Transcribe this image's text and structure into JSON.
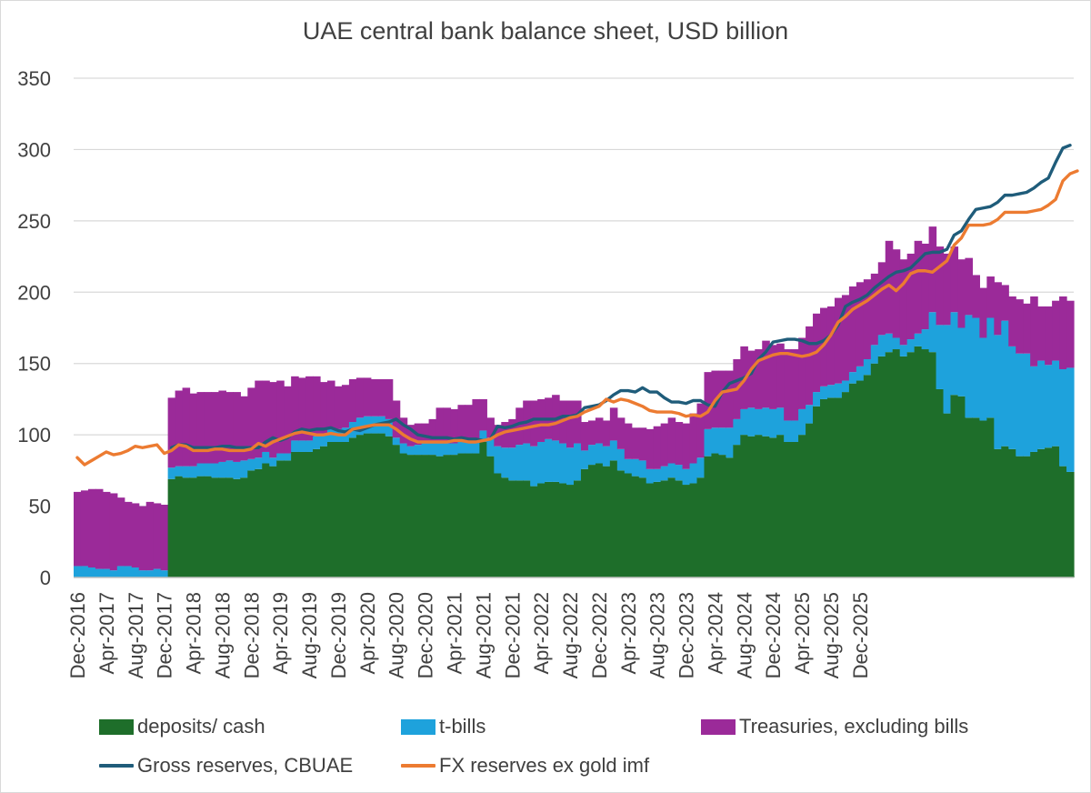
{
  "chart_data": {
    "type": "bar",
    "title": "UAE central bank balance sheet, USD billion",
    "stacked": true,
    "ylim": [
      0,
      350
    ],
    "yticks": [
      0,
      50,
      100,
      150,
      200,
      250,
      300,
      350
    ],
    "grid": true,
    "legend_position": "bottom",
    "x_tick_labels": [
      "Dec-2016",
      "Apr-2017",
      "Aug-2017",
      "Dec-2017",
      "Apr-2018",
      "Aug-2018",
      "Dec-2018",
      "Apr-2019",
      "Aug-2019",
      "Dec-2019",
      "Apr-2020",
      "Aug-2020",
      "Dec-2020",
      "Apr-2021",
      "Aug-2021",
      "Dec-2021",
      "Apr-2022",
      "Aug-2022",
      "Dec-2022",
      "Apr-2023",
      "Aug-2023",
      "Dec-2023",
      "Apr-2024",
      "Aug-2024",
      "Dec-2024",
      "Apr-2025",
      "Aug-2025",
      "Dec-2025"
    ],
    "x_start": "Dec-2016",
    "x_end": "Apr-2026",
    "x_label_every": 4,
    "colors": {
      "deposits": "#1e6e2a",
      "tbills": "#1ea2dc",
      "treasuries": "#9b2a99",
      "gross": "#1f5c7a",
      "fx": "#ec7b31",
      "grid": "#d9d9d9",
      "axis": "#bfbfbf",
      "text": "#404040"
    },
    "series": [
      {
        "name": "deposits/ cash",
        "kind": "bar",
        "color_key": "deposits",
        "values": [
          0,
          0,
          0,
          0,
          0,
          0,
          0,
          0,
          0,
          0,
          0,
          0,
          0,
          69,
          71,
          70,
          70,
          71,
          71,
          70,
          70,
          70,
          69,
          70,
          75,
          76,
          80,
          78,
          82,
          82,
          88,
          88,
          88,
          90,
          92,
          95,
          95,
          95,
          98,
          100,
          101,
          101,
          101,
          99,
          93,
          87,
          86,
          86,
          86,
          86,
          85,
          86,
          86,
          87,
          87,
          87,
          95,
          85,
          73,
          70,
          68,
          68,
          68,
          64,
          66,
          67,
          67,
          66,
          65,
          68,
          76,
          79,
          80,
          78,
          82,
          75,
          73,
          71,
          70,
          66,
          67,
          68,
          70,
          68,
          65,
          66,
          70,
          85,
          87,
          86,
          84,
          93,
          100,
          99,
          100,
          99,
          98,
          100,
          95,
          95,
          100,
          108,
          120,
          125,
          126,
          126,
          130,
          136,
          138,
          142,
          150,
          155,
          158,
          160,
          155,
          158,
          162,
          160,
          158,
          132,
          115,
          128,
          127,
          112,
          112,
          110,
          112,
          90,
          92,
          90,
          85,
          85,
          88,
          90,
          91,
          92,
          78,
          74
        ]
      },
      {
        "name": "t-bills",
        "kind": "bar",
        "color_key": "tbills",
        "values": [
          8,
          8,
          7,
          6,
          6,
          5,
          8,
          8,
          7,
          5,
          5,
          6,
          5,
          8,
          7,
          8,
          8,
          9,
          9,
          10,
          11,
          12,
          12,
          12,
          8,
          8,
          8,
          6,
          5,
          5,
          8,
          8,
          8,
          9,
          9,
          10,
          9,
          10,
          11,
          12,
          12,
          12,
          12,
          12,
          5,
          7,
          6,
          7,
          8,
          8,
          9,
          8,
          8,
          9,
          9,
          8,
          8,
          13,
          19,
          21,
          23,
          25,
          26,
          28,
          29,
          30,
          29,
          28,
          26,
          26,
          13,
          14,
          14,
          14,
          14,
          15,
          10,
          12,
          12,
          10,
          9,
          10,
          10,
          11,
          11,
          14,
          14,
          19,
          18,
          19,
          21,
          18,
          18,
          20,
          18,
          20,
          20,
          19,
          15,
          15,
          18,
          13,
          10,
          9,
          9,
          10,
          8,
          8,
          10,
          11,
          13,
          15,
          13,
          8,
          8,
          9,
          9,
          14,
          28,
          45,
          62,
          58,
          48,
          72,
          70,
          58,
          70,
          80,
          88,
          72,
          72,
          72,
          60,
          62,
          58,
          60,
          68,
          73
        ]
      },
      {
        "name": "Treasuries, excluding bills",
        "kind": "bar",
        "color_key": "treasuries",
        "values": [
          52,
          53,
          55,
          56,
          54,
          54,
          48,
          45,
          45,
          45,
          48,
          46,
          46,
          49,
          53,
          55,
          51,
          50,
          50,
          50,
          50,
          48,
          49,
          45,
          50,
          54,
          50,
          53,
          51,
          47,
          45,
          44,
          45,
          42,
          36,
          33,
          30,
          30,
          30,
          28,
          27,
          26,
          26,
          28,
          26,
          18,
          15,
          15,
          14,
          17,
          25,
          25,
          24,
          25,
          25,
          30,
          22,
          14,
          15,
          18,
          20,
          26,
          30,
          32,
          30,
          29,
          32,
          30,
          33,
          30,
          20,
          17,
          18,
          18,
          23,
          22,
          25,
          22,
          23,
          28,
          30,
          30,
          32,
          30,
          32,
          35,
          38,
          40,
          40,
          40,
          40,
          42,
          44,
          40,
          42,
          47,
          45,
          45,
          50,
          50,
          50,
          55,
          55,
          55,
          55,
          60,
          60,
          60,
          59,
          56,
          50,
          51,
          65,
          62,
          60,
          60,
          65,
          60,
          60,
          55,
          50,
          46,
          48,
          40,
          30,
          35,
          29,
          37,
          25,
          35,
          38,
          35,
          49,
          38,
          41,
          42,
          51,
          47
        ]
      },
      {
        "name": "Gross reserves, CBUAE",
        "kind": "line",
        "color_key": "gross",
        "values": [
          null,
          null,
          null,
          null,
          null,
          null,
          null,
          null,
          null,
          null,
          null,
          null,
          null,
          91,
          93,
          93,
          91,
          91,
          91,
          91,
          92,
          92,
          91,
          91,
          91,
          91,
          95,
          98,
          96,
          98,
          102,
          104,
          103,
          104,
          104,
          105,
          103,
          102,
          104,
          103,
          105,
          107,
          108,
          109,
          111,
          107,
          104,
          100,
          99,
          98,
          98,
          98,
          97,
          98,
          97,
          97,
          96,
          97,
          106,
          105,
          106,
          108,
          109,
          111,
          111,
          111,
          111,
          113,
          113,
          114,
          119,
          120,
          121,
          124,
          128,
          131,
          131,
          130,
          133,
          130,
          130,
          126,
          123,
          123,
          122,
          124,
          124,
          121,
          120,
          130,
          136,
          138,
          140,
          143,
          153,
          158,
          165,
          166,
          167,
          167,
          166,
          164,
          164,
          166,
          170,
          177,
          190,
          193,
          195,
          198,
          203,
          207,
          211,
          214,
          215,
          217,
          222,
          227,
          228,
          228,
          230,
          240,
          243,
          251,
          258,
          259,
          260,
          263,
          268,
          268,
          269,
          270,
          273,
          277,
          280,
          291,
          301,
          303
        ]
      },
      {
        "name": "FX reserves ex gold imf",
        "kind": "line",
        "color_key": "fx",
        "values": [
          84,
          79,
          82,
          85,
          88,
          86,
          87,
          89,
          92,
          91,
          92,
          93,
          87,
          89,
          93,
          92,
          89,
          89,
          89,
          90,
          90,
          89,
          89,
          89,
          90,
          94,
          92,
          95,
          97,
          99,
          101,
          102,
          101,
          100,
          100,
          101,
          100,
          100,
          104,
          105,
          106,
          107,
          107,
          107,
          104,
          100,
          97,
          95,
          95,
          95,
          95,
          95,
          96,
          96,
          95,
          95,
          96,
          97,
          100,
          102,
          103,
          104,
          105,
          106,
          107,
          107,
          108,
          110,
          112,
          113,
          116,
          118,
          120,
          125,
          123,
          125,
          124,
          122,
          120,
          117,
          116,
          116,
          116,
          115,
          113,
          114,
          113,
          116,
          124,
          130,
          131,
          132,
          138,
          146,
          152,
          154,
          156,
          157,
          157,
          156,
          155,
          156,
          158,
          163,
          170,
          179,
          183,
          188,
          191,
          194,
          198,
          202,
          205,
          201,
          206,
          213,
          215,
          215,
          214,
          218,
          222,
          233,
          238,
          247,
          247,
          247,
          248,
          251,
          256,
          256,
          256,
          256,
          257,
          258,
          261,
          265,
          278,
          283,
          285
        ]
      }
    ]
  }
}
